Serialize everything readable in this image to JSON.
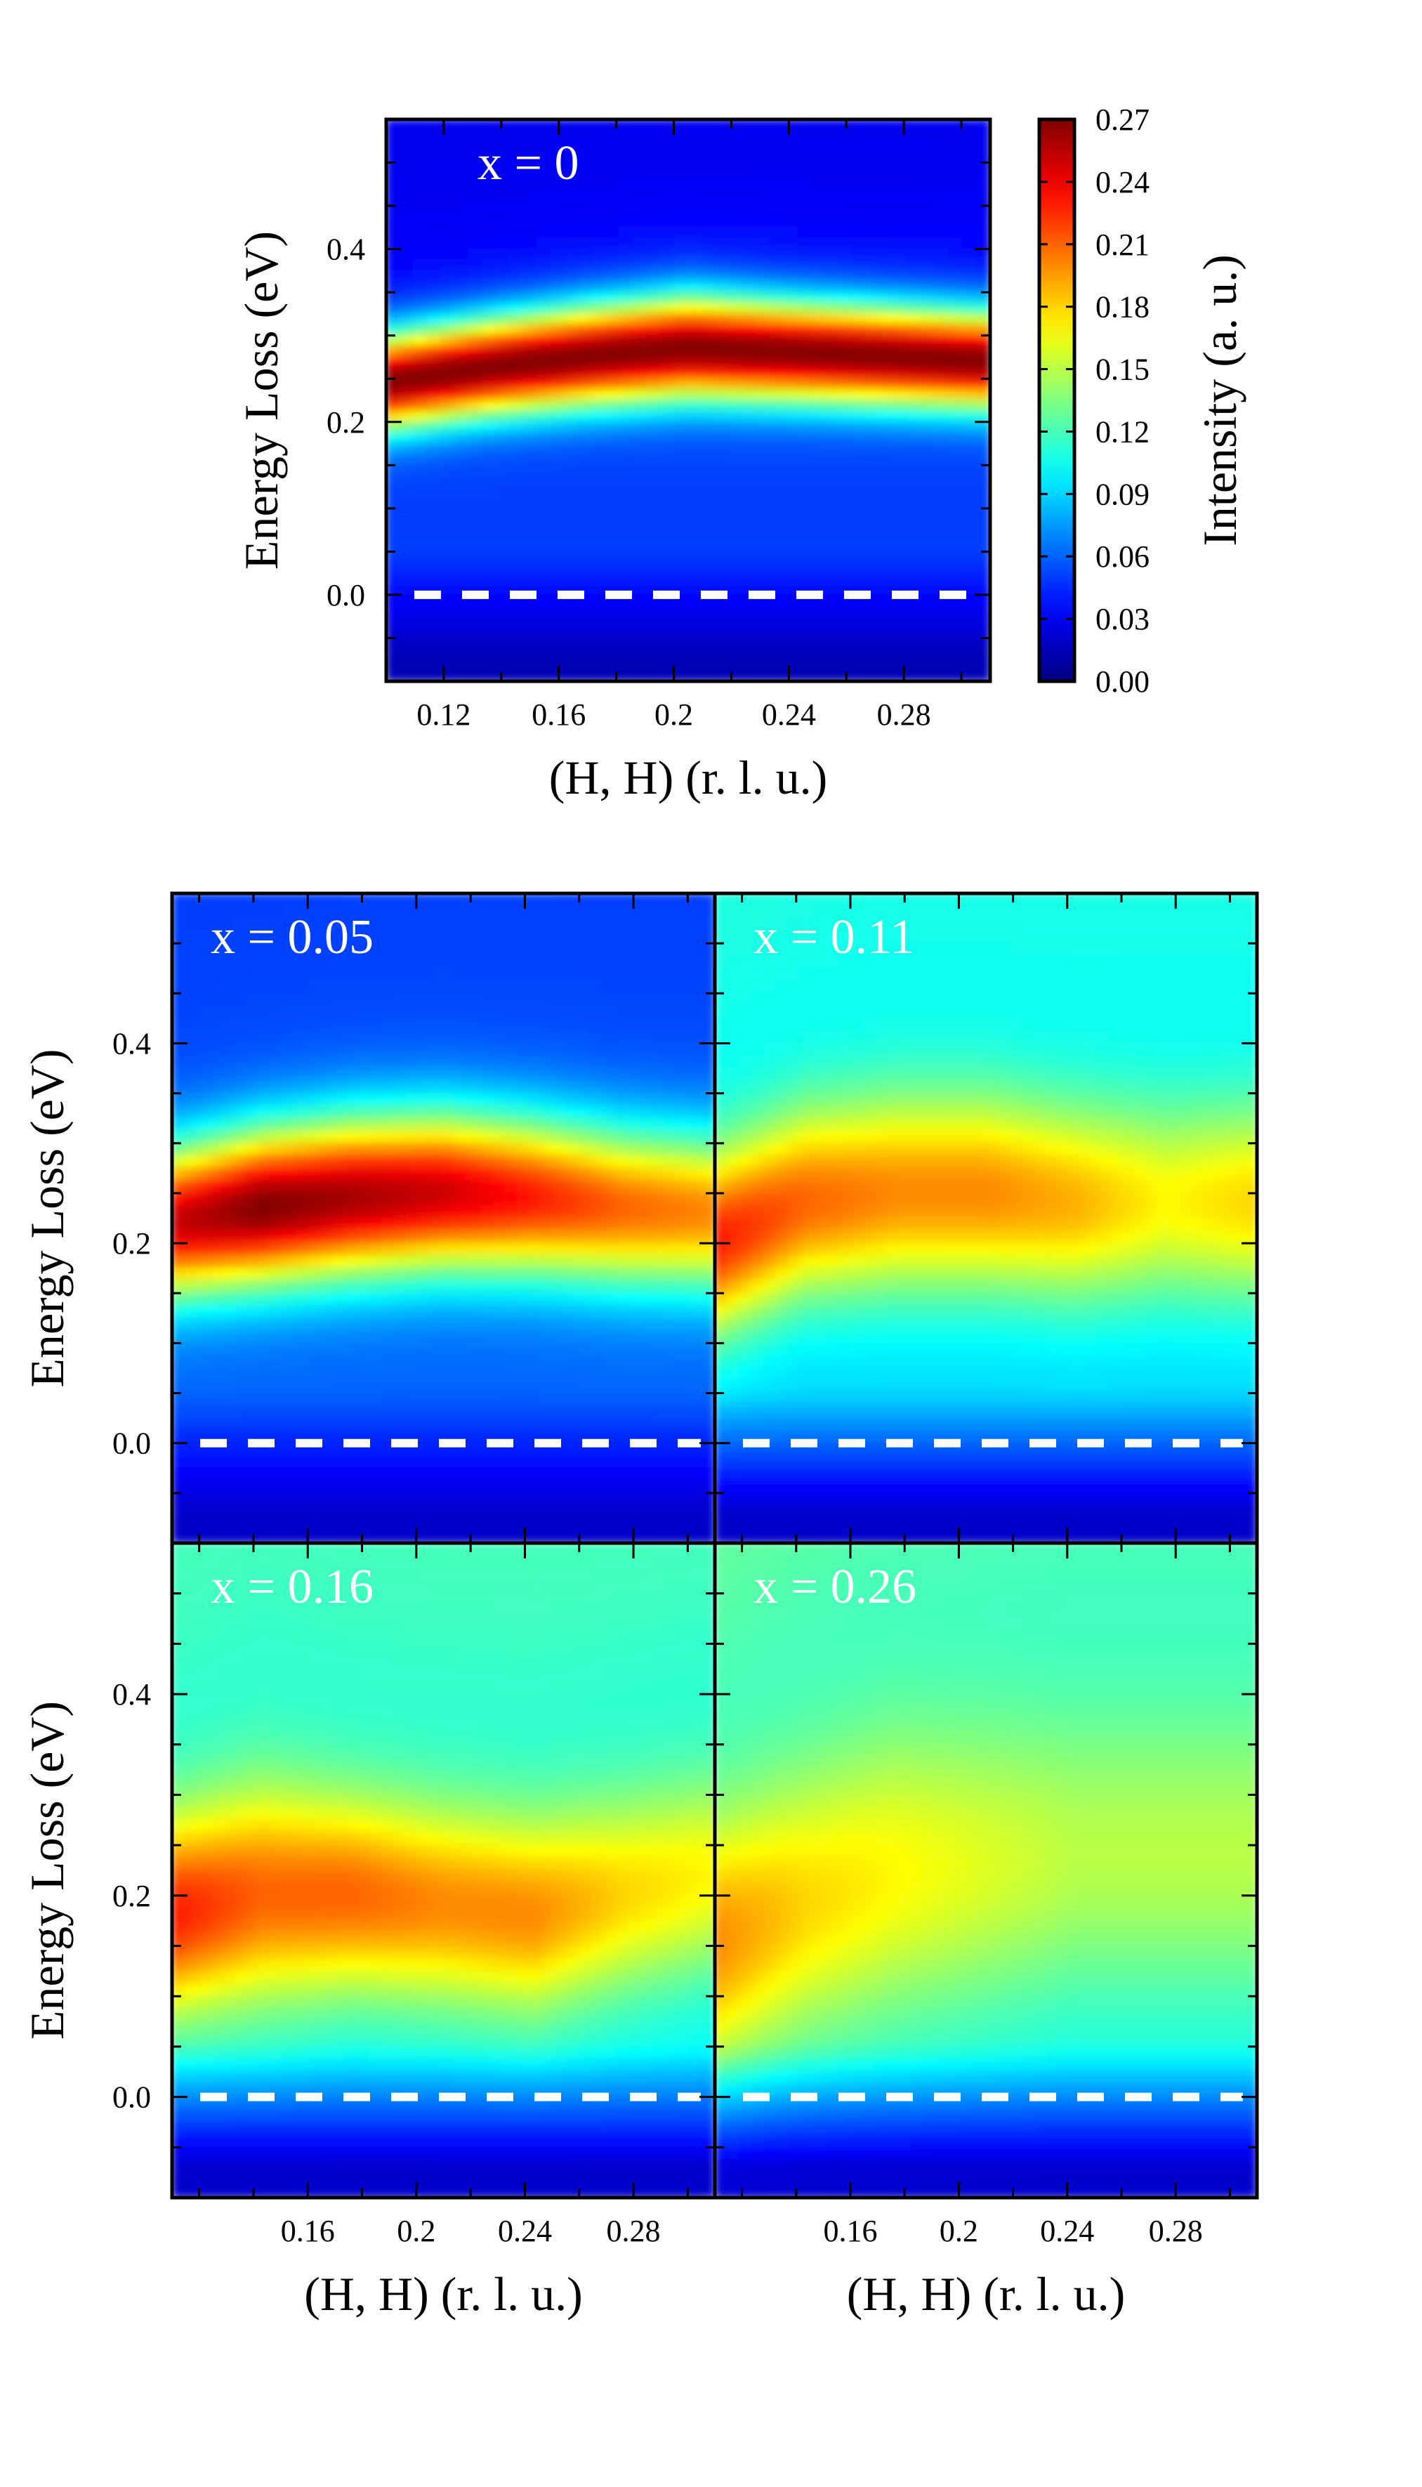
{
  "chart_data": [
    {
      "type": "heatmap",
      "panel": "top",
      "label": "x = 0",
      "xlabel": "(H, H) (r. l. u.)",
      "ylabel": "Energy Loss (eV)",
      "xlim": [
        0.1,
        0.31
      ],
      "ylim": [
        -0.1,
        0.55
      ],
      "xticks": [
        0.12,
        0.16,
        0.2,
        0.24,
        0.28
      ],
      "xtick_labels": [
        "0.12",
        "0.16",
        "0.2",
        "0.24",
        "0.28"
      ],
      "yticks": [
        0.0,
        0.2,
        0.4
      ],
      "ytick_labels": [
        "0.0",
        "0.2",
        "0.4"
      ],
      "elastic_line_energy": 0.0,
      "profile": {
        "center": [
          0.245,
          0.262,
          0.275,
          0.285,
          0.28,
          0.275,
          0.27
        ],
        "width": [
          0.055,
          0.056,
          0.058,
          0.06,
          0.058,
          0.057,
          0.056
        ],
        "amp": [
          0.27,
          0.27,
          0.27,
          0.27,
          0.27,
          0.27,
          0.27
        ],
        "base": 0.05,
        "upper": 0.03,
        "elastic": 0.015
      }
    },
    {
      "type": "heatmap",
      "panel": "middle-left",
      "label": "x = 0.05",
      "xlabel": "",
      "ylabel": "Energy Loss (eV)",
      "xlim": [
        0.11,
        0.31
      ],
      "ylim": [
        -0.1,
        0.55
      ],
      "xticks": [
        0.16,
        0.2,
        0.24,
        0.28
      ],
      "xtick_labels": [],
      "yticks": [
        0.0,
        0.2,
        0.4
      ],
      "ytick_labels": [
        "0.0",
        "0.2",
        "0.4"
      ],
      "elastic_line_energy": 0.0,
      "profile": {
        "center": [
          0.22,
          0.235,
          0.245,
          0.25,
          0.245,
          0.235,
          0.23
        ],
        "width": [
          0.075,
          0.078,
          0.08,
          0.08,
          0.08,
          0.08,
          0.08
        ],
        "amp": [
          0.25,
          0.27,
          0.26,
          0.25,
          0.23,
          0.21,
          0.2
        ],
        "base": 0.06,
        "upper": 0.05,
        "elastic": 0.02
      }
    },
    {
      "type": "heatmap",
      "panel": "middle-right",
      "label": "x = 0.11",
      "xlabel": "",
      "ylabel": "",
      "xlim": [
        0.11,
        0.31
      ],
      "ylim": [
        -0.1,
        0.55
      ],
      "xticks": [
        0.16,
        0.2,
        0.24,
        0.28
      ],
      "xtick_labels": [],
      "yticks": [
        0.0,
        0.2,
        0.4
      ],
      "ytick_labels": [],
      "elastic_line_energy": 0.0,
      "profile": {
        "center": [
          0.2,
          0.24,
          0.25,
          0.25,
          0.24,
          0.24,
          0.24
        ],
        "width": [
          0.09,
          0.095,
          0.1,
          0.1,
          0.1,
          0.1,
          0.1
        ],
        "amp": [
          0.23,
          0.21,
          0.2,
          0.2,
          0.19,
          0.17,
          0.18
        ],
        "base": 0.09,
        "upper": 0.11,
        "elastic": 0.02
      }
    },
    {
      "type": "heatmap",
      "panel": "bottom-left",
      "label": "x = 0.16",
      "xlabel": "(H, H) (r. l. u.)",
      "ylabel": "Energy Loss (eV)",
      "xlim": [
        0.11,
        0.31
      ],
      "ylim": [
        -0.1,
        0.55
      ],
      "xticks": [
        0.16,
        0.2,
        0.24,
        0.28
      ],
      "xtick_labels": [
        "0.16",
        "0.2",
        "0.24",
        "0.28"
      ],
      "yticks": [
        0.0,
        0.2,
        0.4
      ],
      "ytick_labels": [
        "0.0",
        "0.2",
        "0.4"
      ],
      "elastic_line_energy": 0.0,
      "profile": {
        "center": [
          0.18,
          0.2,
          0.2,
          0.19,
          0.18,
          0.2,
          0.22
        ],
        "width": [
          0.1,
          0.11,
          0.1,
          0.1,
          0.1,
          0.1,
          0.1
        ],
        "amp": [
          0.23,
          0.21,
          0.21,
          0.2,
          0.2,
          0.18,
          0.17
        ],
        "base": 0.1,
        "upper": 0.12,
        "elastic": 0.02
      }
    },
    {
      "type": "heatmap",
      "panel": "bottom-right",
      "label": "x = 0.26",
      "xlabel": "(H, H) (r. l. u.)",
      "ylabel": "",
      "xlim": [
        0.11,
        0.31
      ],
      "ylim": [
        -0.1,
        0.55
      ],
      "xticks": [
        0.16,
        0.2,
        0.24,
        0.28
      ],
      "xtick_labels": [
        "0.16",
        "0.2",
        "0.24",
        "0.28"
      ],
      "yticks": [
        0.0,
        0.2,
        0.4
      ],
      "ytick_labels": [],
      "elastic_line_energy": 0.0,
      "profile": {
        "center": [
          0.15,
          0.19,
          0.22,
          0.23,
          0.24,
          0.24,
          0.24
        ],
        "width": [
          0.13,
          0.14,
          0.15,
          0.15,
          0.15,
          0.15,
          0.15
        ],
        "amp": [
          0.2,
          0.18,
          0.17,
          0.16,
          0.15,
          0.15,
          0.15
        ],
        "base": 0.1,
        "upper": 0.13,
        "elastic": 0.02
      }
    }
  ],
  "colorbar": {
    "label": "Intensity (a. u.)",
    "range": [
      0.0,
      0.27
    ],
    "ticks": [
      0.0,
      0.03,
      0.06,
      0.09,
      0.12,
      0.15,
      0.18,
      0.21,
      0.24,
      0.27
    ],
    "tick_labels": [
      "0.00",
      "0.03",
      "0.06",
      "0.09",
      "0.12",
      "0.15",
      "0.18",
      "0.21",
      "0.24",
      "0.27"
    ]
  },
  "colors": {
    "axes": "#000000",
    "dash": "#ffffff",
    "label_text": "#ffffff"
  }
}
